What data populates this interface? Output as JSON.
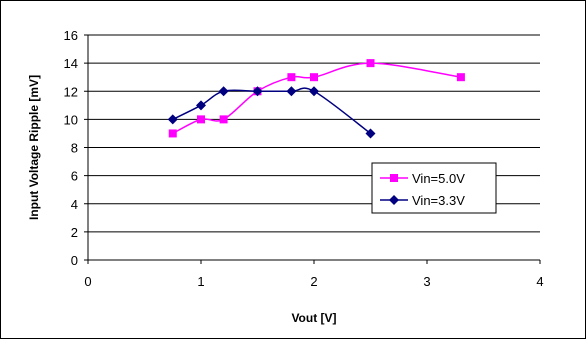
{
  "chart_data": {
    "type": "line",
    "xlabel": "Vout [V]",
    "ylabel": "Input Voltage Ripple [mV]",
    "xlim": [
      0,
      4
    ],
    "ylim": [
      0,
      16
    ],
    "x_ticks": [
      0,
      1,
      2,
      3,
      4
    ],
    "y_ticks": [
      0,
      2,
      4,
      6,
      8,
      10,
      12,
      14,
      16
    ],
    "grid": "horizontal",
    "legend_position": "right",
    "series": [
      {
        "name": "Vin=5.0V",
        "color": "#ff00ff",
        "marker": "square",
        "x": [
          0.75,
          1.0,
          1.2,
          1.5,
          1.8,
          2.0,
          2.5,
          3.3
        ],
        "y": [
          9,
          10,
          10,
          12,
          13,
          13,
          14,
          13
        ]
      },
      {
        "name": "Vin=3.3V",
        "color": "#000080",
        "marker": "diamond",
        "x": [
          0.75,
          1.0,
          1.2,
          1.5,
          1.8,
          2.0,
          2.5
        ],
        "y": [
          10,
          11,
          12,
          12,
          12,
          12,
          9
        ]
      }
    ]
  }
}
